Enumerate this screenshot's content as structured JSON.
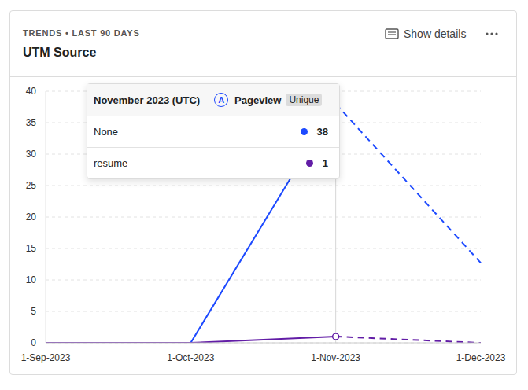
{
  "chart_data": {
    "type": "line",
    "title": "UTM Source",
    "subtitle": "TRENDS • LAST 90 DAYS",
    "action_label": "Show details",
    "x": [
      "1-Sep-2023",
      "1-Oct-2023",
      "1-Nov-2023",
      "1-Dec-2023"
    ],
    "series": [
      {
        "name": "None",
        "color": "#1d4aff",
        "values": [
          0,
          0,
          38,
          12.7
        ]
      },
      {
        "name": "resume",
        "color": "#621da6",
        "values": [
          0,
          0,
          1,
          0
        ]
      }
    ],
    "ylim": [
      0,
      40
    ],
    "yticks": [
      0,
      5,
      10,
      15,
      20,
      25,
      30,
      35,
      40
    ],
    "grid": true,
    "tooltip": {
      "x": "1-Nov-2023",
      "title": "November 2023 (UTC)",
      "badge": "A",
      "event": "Pageview",
      "math": "Unique"
    }
  }
}
